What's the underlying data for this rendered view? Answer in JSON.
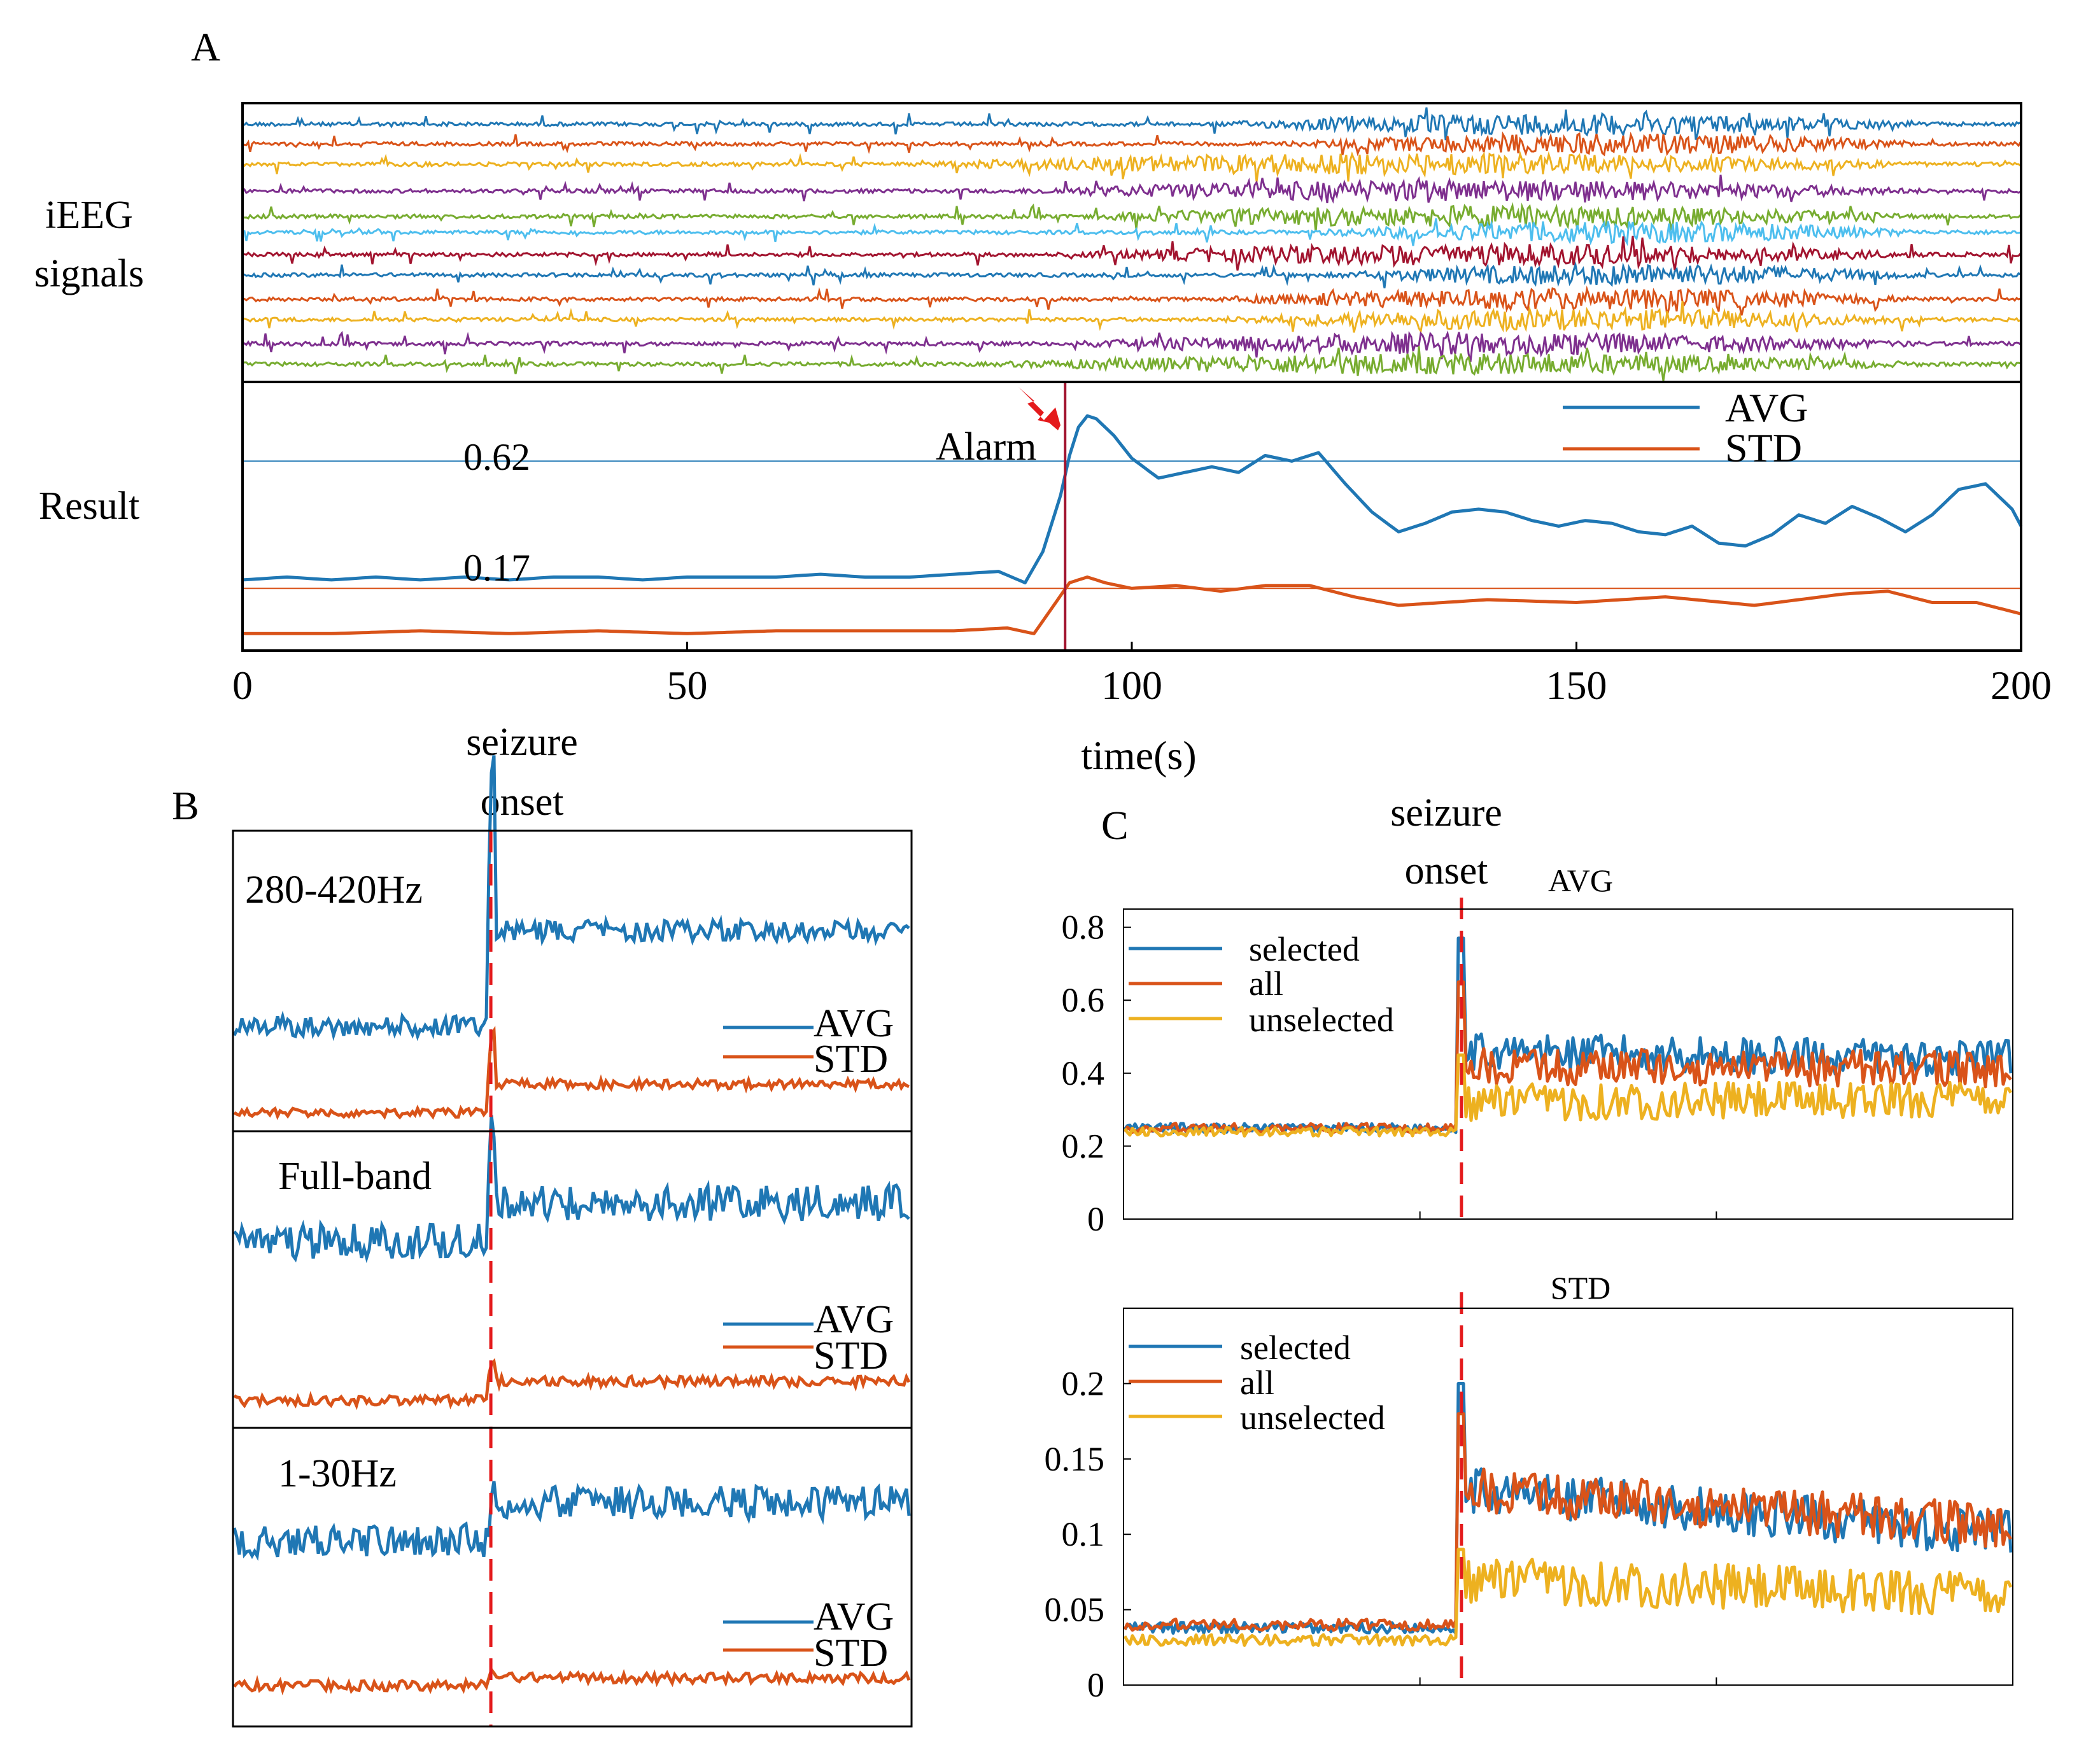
{
  "colors": {
    "blue": "#1f77b4",
    "orange": "#d95319",
    "yellow": "#edb120",
    "purple": "#7e2f8e",
    "green": "#77ac30",
    "cyan": "#4dbeee",
    "darkred": "#a2142f",
    "red": "#e41a1c",
    "axis": "#000000"
  },
  "chart_data": [
    {
      "id": "A",
      "panel_label": "A",
      "type": "line",
      "row_labels": {
        "signals_line1": "iEEG",
        "signals_line2": "signals",
        "result": "Result"
      },
      "xlabel": "time(s)",
      "xlim": [
        0,
        200
      ],
      "xticks": [
        0,
        50,
        100,
        150,
        200
      ],
      "alarm": {
        "label": "Alarm",
        "x": 92.5
      },
      "thresholds": [
        {
          "series": "AVG",
          "value": 0.62,
          "label": "0.62"
        },
        {
          "series": "STD",
          "value": 0.17,
          "label": "0.17"
        }
      ],
      "legend": [
        "AVG",
        "STD"
      ],
      "ieeg_channel_colors": [
        "blue",
        "orange",
        "yellow",
        "purple",
        "green",
        "cyan",
        "darkred",
        "blue",
        "orange",
        "yellow",
        "purple",
        "green"
      ],
      "result_ylim": [
        -0.05,
        0.9
      ],
      "series": [
        {
          "name": "AVG",
          "color": "blue",
          "x": [
            0,
            5,
            10,
            15,
            20,
            25,
            30,
            35,
            40,
            45,
            50,
            55,
            60,
            65,
            70,
            75,
            80,
            85,
            88,
            90,
            92,
            93,
            94,
            95,
            96,
            98,
            100,
            103,
            106,
            109,
            112,
            115,
            118,
            121,
            124,
            127,
            130,
            133,
            136,
            139,
            142,
            145,
            148,
            151,
            154,
            157,
            160,
            163,
            166,
            169,
            172,
            175,
            178,
            181,
            184,
            187,
            190,
            193,
            196,
            199,
            200
          ],
          "values": [
            0.2,
            0.21,
            0.2,
            0.21,
            0.2,
            0.21,
            0.2,
            0.21,
            0.21,
            0.2,
            0.21,
            0.21,
            0.21,
            0.22,
            0.21,
            0.21,
            0.22,
            0.23,
            0.19,
            0.3,
            0.5,
            0.64,
            0.74,
            0.78,
            0.77,
            0.71,
            0.63,
            0.56,
            0.58,
            0.6,
            0.58,
            0.64,
            0.62,
            0.65,
            0.54,
            0.44,
            0.37,
            0.4,
            0.44,
            0.45,
            0.44,
            0.41,
            0.39,
            0.41,
            0.4,
            0.37,
            0.36,
            0.39,
            0.33,
            0.32,
            0.36,
            0.43,
            0.4,
            0.46,
            0.42,
            0.37,
            0.43,
            0.52,
            0.54,
            0.45,
            0.39
          ]
        },
        {
          "name": "STD",
          "color": "orange",
          "x": [
            0,
            10,
            20,
            30,
            40,
            50,
            60,
            70,
            80,
            86,
            89,
            91,
            93,
            95,
            97,
            100,
            105,
            110,
            115,
            120,
            125,
            130,
            140,
            150,
            160,
            170,
            175,
            180,
            185,
            190,
            195,
            200
          ],
          "values": [
            0.01,
            0.01,
            0.02,
            0.01,
            0.02,
            0.01,
            0.02,
            0.02,
            0.02,
            0.03,
            0.01,
            0.1,
            0.19,
            0.21,
            0.19,
            0.17,
            0.18,
            0.16,
            0.18,
            0.18,
            0.14,
            0.11,
            0.13,
            0.12,
            0.14,
            0.11,
            0.13,
            0.15,
            0.16,
            0.12,
            0.12,
            0.08
          ]
        }
      ]
    },
    {
      "id": "B",
      "panel_label": "B",
      "type": "line",
      "onset_label_line1": "seizure",
      "onset_label_line2": "onset",
      "onset_fraction": 0.38,
      "subpanels": [
        {
          "label": "280-420Hz",
          "legend": [
            "AVG",
            "STD"
          ]
        },
        {
          "label": "Full-band",
          "legend": [
            "AVG",
            "STD"
          ]
        },
        {
          "label": "1-30Hz",
          "legend": [
            "AVG",
            "STD"
          ]
        }
      ]
    },
    {
      "id": "C1",
      "panel_label": "C",
      "type": "line",
      "title": "AVG",
      "onset_label_line1": "seizure",
      "onset_label_line2": "onset",
      "onset_fraction": 0.38,
      "ylim": [
        0,
        0.85
      ],
      "yticks": [
        0,
        0.2,
        0.4,
        0.6,
        0.8
      ],
      "ytick_labels": [
        "0",
        "0.2",
        "0.4",
        "0.6",
        "0.8"
      ],
      "legend": [
        "selected",
        "all",
        "unselected"
      ],
      "series": [
        {
          "name": "selected",
          "color": "blue",
          "pre": 0.25,
          "peak": 0.77,
          "post": 0.46,
          "end": 0.44
        },
        {
          "name": "all",
          "color": "orange",
          "pre": 0.25,
          "peak": 0.65,
          "post": 0.42,
          "end": 0.41
        },
        {
          "name": "unselected",
          "color": "yellow",
          "pre": 0.24,
          "peak": 0.45,
          "post": 0.32,
          "end": 0.33
        }
      ]
    },
    {
      "id": "C2",
      "type": "line",
      "title": "STD",
      "onset_fraction": 0.38,
      "ylim": [
        0,
        0.25
      ],
      "yticks": [
        0,
        0.05,
        0.1,
        0.15,
        0.2
      ],
      "ytick_labels": [
        "0",
        "0.05",
        "0.1",
        "0.15",
        "0.2"
      ],
      "legend": [
        "selected",
        "all",
        "unselected"
      ],
      "series": [
        {
          "name": "selected",
          "color": "blue",
          "pre": 0.038,
          "peak": 0.2,
          "post": 0.13,
          "end": 0.1
        },
        {
          "name": "all",
          "color": "orange",
          "pre": 0.04,
          "peak": 0.18,
          "post": 0.13,
          "end": 0.105
        },
        {
          "name": "unselected",
          "color": "yellow",
          "pre": 0.03,
          "peak": 0.09,
          "post": 0.07,
          "end": 0.06
        }
      ]
    }
  ]
}
